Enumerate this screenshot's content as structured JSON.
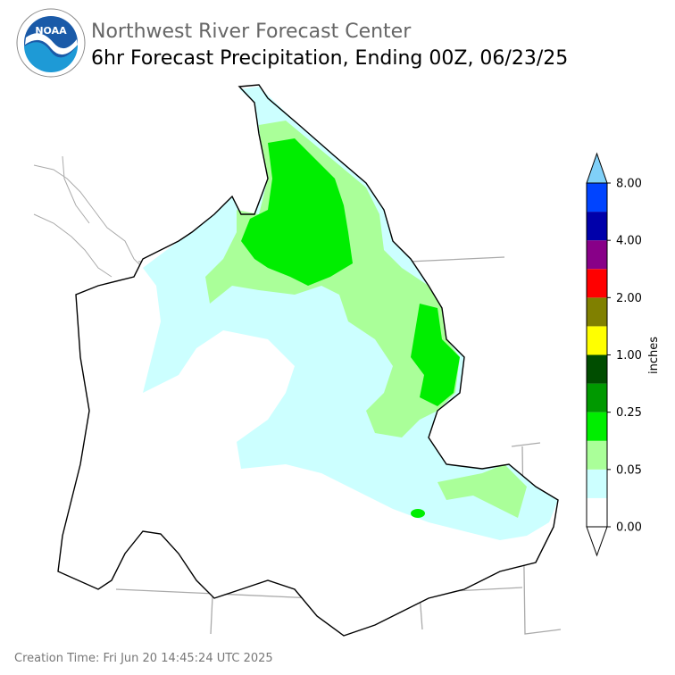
{
  "header": {
    "title": "Northwest River Forecast Center",
    "subtitle": "6hr Forecast Precipitation, Ending 00Z, 06/23/25",
    "logo_text": "NOAA"
  },
  "legend": {
    "label": "inches",
    "ticks": [
      "0.00",
      "0.05",
      "0.25",
      "1.00",
      "2.00",
      "4.00",
      "8.00"
    ],
    "colors": [
      "#ffffff",
      "#ccffff",
      "#aaff99",
      "#00ee00",
      "#009900",
      "#004d00",
      "#ffff00",
      "#808000",
      "#ff0000",
      "#880088",
      "#0000aa",
      "#0044ff"
    ],
    "over_color": "#80d0f8",
    "under_color": "#ffffff"
  },
  "footer": {
    "creation_time": "Creation Time: Fri Jun 20 14:45:24 UTC 2025"
  }
}
